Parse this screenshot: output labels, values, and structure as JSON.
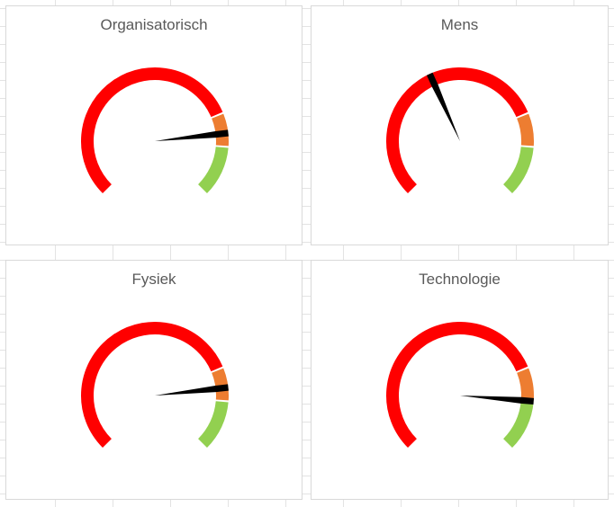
{
  "chart_data": [
    {
      "type": "gauge",
      "title": "Organisatorisch",
      "segments": [
        {
          "label": "",
          "value": 75,
          "color": "#ff0000"
        },
        {
          "label": "",
          "value": 10,
          "color": "#ed7d31"
        },
        {
          "label": "",
          "value": 15,
          "color": "#92d050"
        }
      ],
      "range": [
        0,
        100
      ],
      "value": 81,
      "needle_color": "#000000"
    },
    {
      "type": "gauge",
      "title": "Mens",
      "segments": [
        {
          "label": "",
          "value": 75,
          "color": "#ff0000"
        },
        {
          "label": "",
          "value": 10,
          "color": "#ed7d31"
        },
        {
          "label": "",
          "value": 15,
          "color": "#92d050"
        }
      ],
      "range": [
        0,
        100
      ],
      "value": 41,
      "needle_color": "#000000"
    },
    {
      "type": "gauge",
      "title": "Fysiek",
      "segments": [
        {
          "label": "",
          "value": 75,
          "color": "#ff0000"
        },
        {
          "label": "",
          "value": 10,
          "color": "#ed7d31"
        },
        {
          "label": "",
          "value": 15,
          "color": "#92d050"
        }
      ],
      "range": [
        0,
        100
      ],
      "value": 81,
      "needle_color": "#000000"
    },
    {
      "type": "gauge",
      "title": "Technologie",
      "segments": [
        {
          "label": "",
          "value": 75,
          "color": "#ff0000"
        },
        {
          "label": "",
          "value": 10,
          "color": "#ed7d31"
        },
        {
          "label": "",
          "value": 15,
          "color": "#92d050"
        }
      ],
      "range": [
        0,
        100
      ],
      "value": 85,
      "needle_color": "#000000"
    }
  ]
}
